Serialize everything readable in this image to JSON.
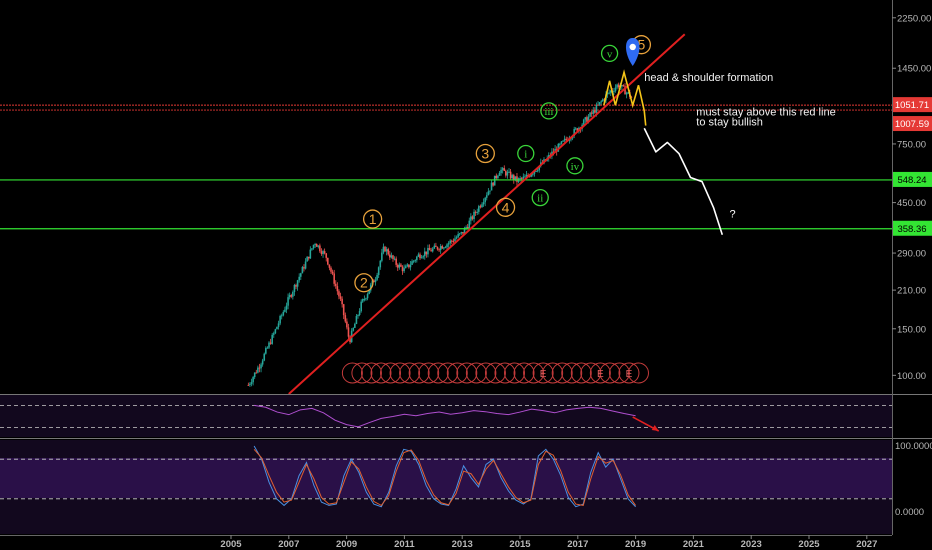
{
  "chart_data": [
    {
      "type": "candlestick",
      "scale": "log",
      "ylim": [
        85,
        2450
      ],
      "y_ticks": [
        "2250.00",
        "1450.00",
        "750.00",
        "450.00",
        "290.00",
        "210.00",
        "150.00",
        "100.00"
      ],
      "x_ticks": [
        "2005",
        "2007",
        "2009",
        "2011",
        "2013",
        "2015",
        "2017",
        "2019",
        "2021",
        "2023",
        "2025",
        "2027"
      ],
      "price_path": [
        [
          2005.6,
          92
        ],
        [
          2006.0,
          110
        ],
        [
          2006.5,
          145
        ],
        [
          2007.0,
          195
        ],
        [
          2007.5,
          255
        ],
        [
          2007.9,
          320
        ],
        [
          2008.3,
          280
        ],
        [
          2008.8,
          190
        ],
        [
          2009.1,
          135
        ],
        [
          2009.5,
          185
        ],
        [
          2010.0,
          235
        ],
        [
          2010.3,
          305
        ],
        [
          2010.7,
          265
        ],
        [
          2011.0,
          250
        ],
        [
          2011.5,
          285
        ],
        [
          2012.0,
          300
        ],
        [
          2012.5,
          315
        ],
        [
          2013.0,
          345
        ],
        [
          2013.5,
          420
        ],
        [
          2014.0,
          520
        ],
        [
          2014.3,
          600
        ],
        [
          2014.6,
          575
        ],
        [
          2014.9,
          545
        ],
        [
          2015.2,
          560
        ],
        [
          2015.6,
          610
        ],
        [
          2015.9,
          650
        ],
        [
          2016.1,
          690
        ],
        [
          2016.5,
          760
        ],
        [
          2017.0,
          860
        ],
        [
          2017.5,
          980
        ],
        [
          2018.0,
          1150
        ],
        [
          2018.4,
          1260
        ],
        [
          2018.7,
          1170
        ],
        [
          2018.9,
          1120
        ]
      ],
      "horizontal_levels": [
        {
          "value": 1051.71,
          "label": "1051.71",
          "color": "#e53935"
        },
        {
          "value": 1007.59,
          "label": "1007.59",
          "color": "#e53935"
        },
        {
          "value": 548.24,
          "label": "548.24",
          "color": "#33e533"
        },
        {
          "value": 358.36,
          "label": "358.36",
          "color": "#33e533"
        }
      ],
      "trendline": {
        "from": [
          2007.0,
          85
        ],
        "to": [
          2020.7,
          1950
        ],
        "color": "#e02020"
      },
      "projection": [
        [
          2019.3,
          860
        ],
        [
          2019.7,
          700
        ],
        [
          2020.1,
          760
        ],
        [
          2020.5,
          690
        ],
        [
          2020.9,
          560
        ],
        [
          2021.3,
          540
        ],
        [
          2021.7,
          430
        ],
        [
          2022.0,
          340
        ]
      ],
      "projection_color": "#ffffff",
      "wave_labels_major": [
        {
          "label": "1",
          "x": 2009.9,
          "y": 390
        },
        {
          "label": "2",
          "x": 2009.6,
          "y": 224
        },
        {
          "label": "3",
          "x": 2013.8,
          "y": 690
        },
        {
          "label": "4",
          "x": 2014.5,
          "y": 432
        },
        {
          "label": "5",
          "x": 2019.2,
          "y": 1780
        }
      ],
      "wave_labels_minor": [
        {
          "label": "i",
          "x": 2015.2,
          "y": 690
        },
        {
          "label": "ii",
          "x": 2015.7,
          "y": 470
        },
        {
          "label": "iii",
          "x": 2016.0,
          "y": 1000
        },
        {
          "label": "iv",
          "x": 2016.9,
          "y": 620
        },
        {
          "label": "v",
          "x": 2018.1,
          "y": 1650
        }
      ],
      "annotations": [
        {
          "text": "head & shoulder formation",
          "x": 2019.3,
          "y": 1300
        },
        {
          "text": "must stay above this red line",
          "x": 2021.1,
          "y": 960
        },
        {
          "text": "to stay bullish",
          "x": 2021.1,
          "y": 880
        }
      ],
      "event_markers": {
        "count": 31,
        "from": 2009.2,
        "to": 2019.1,
        "labeled": [
          "E",
          "E",
          "E"
        ]
      }
    },
    {
      "type": "line",
      "name": "",
      "ylim": [
        0,
        100
      ],
      "reference_levels": [
        80,
        20
      ],
      "values": [
        80,
        75,
        62,
        55,
        68,
        72,
        60,
        40,
        28,
        22,
        34,
        45,
        50,
        56,
        52,
        58,
        62,
        56,
        60,
        66,
        63,
        58,
        55,
        62,
        70,
        66,
        60,
        68,
        72,
        75,
        72,
        65,
        58,
        52
      ]
    },
    {
      "type": "line",
      "name": "",
      "ylim": [
        0,
        100
      ],
      "tick_labels": [
        "100.0000",
        "0.0000"
      ],
      "reference_levels": [
        80,
        20
      ],
      "series": [
        {
          "color": "#4a90e2",
          "values": [
            100,
            80,
            45,
            20,
            10,
            20,
            55,
            75,
            40,
            15,
            10,
            12,
            55,
            80,
            60,
            30,
            12,
            8,
            30,
            70,
            95,
            92,
            72,
            40,
            20,
            12,
            10,
            35,
            70,
            52,
            38,
            72,
            80,
            52,
            32,
            18,
            12,
            20,
            85,
            95,
            80,
            55,
            22,
            8,
            12,
            60,
            90,
            68,
            80,
            50,
            20,
            8
          ]
        },
        {
          "color": "#e06030",
          "values": [
            95,
            82,
            55,
            30,
            15,
            18,
            45,
            72,
            50,
            22,
            12,
            14,
            45,
            76,
            65,
            38,
            16,
            10,
            25,
            62,
            90,
            94,
            78,
            48,
            26,
            14,
            11,
            28,
            62,
            58,
            42,
            65,
            78,
            58,
            38,
            22,
            14,
            18,
            72,
            92,
            86,
            62,
            30,
            12,
            10,
            50,
            84,
            74,
            78,
            56,
            26,
            10
          ]
        }
      ]
    }
  ]
}
